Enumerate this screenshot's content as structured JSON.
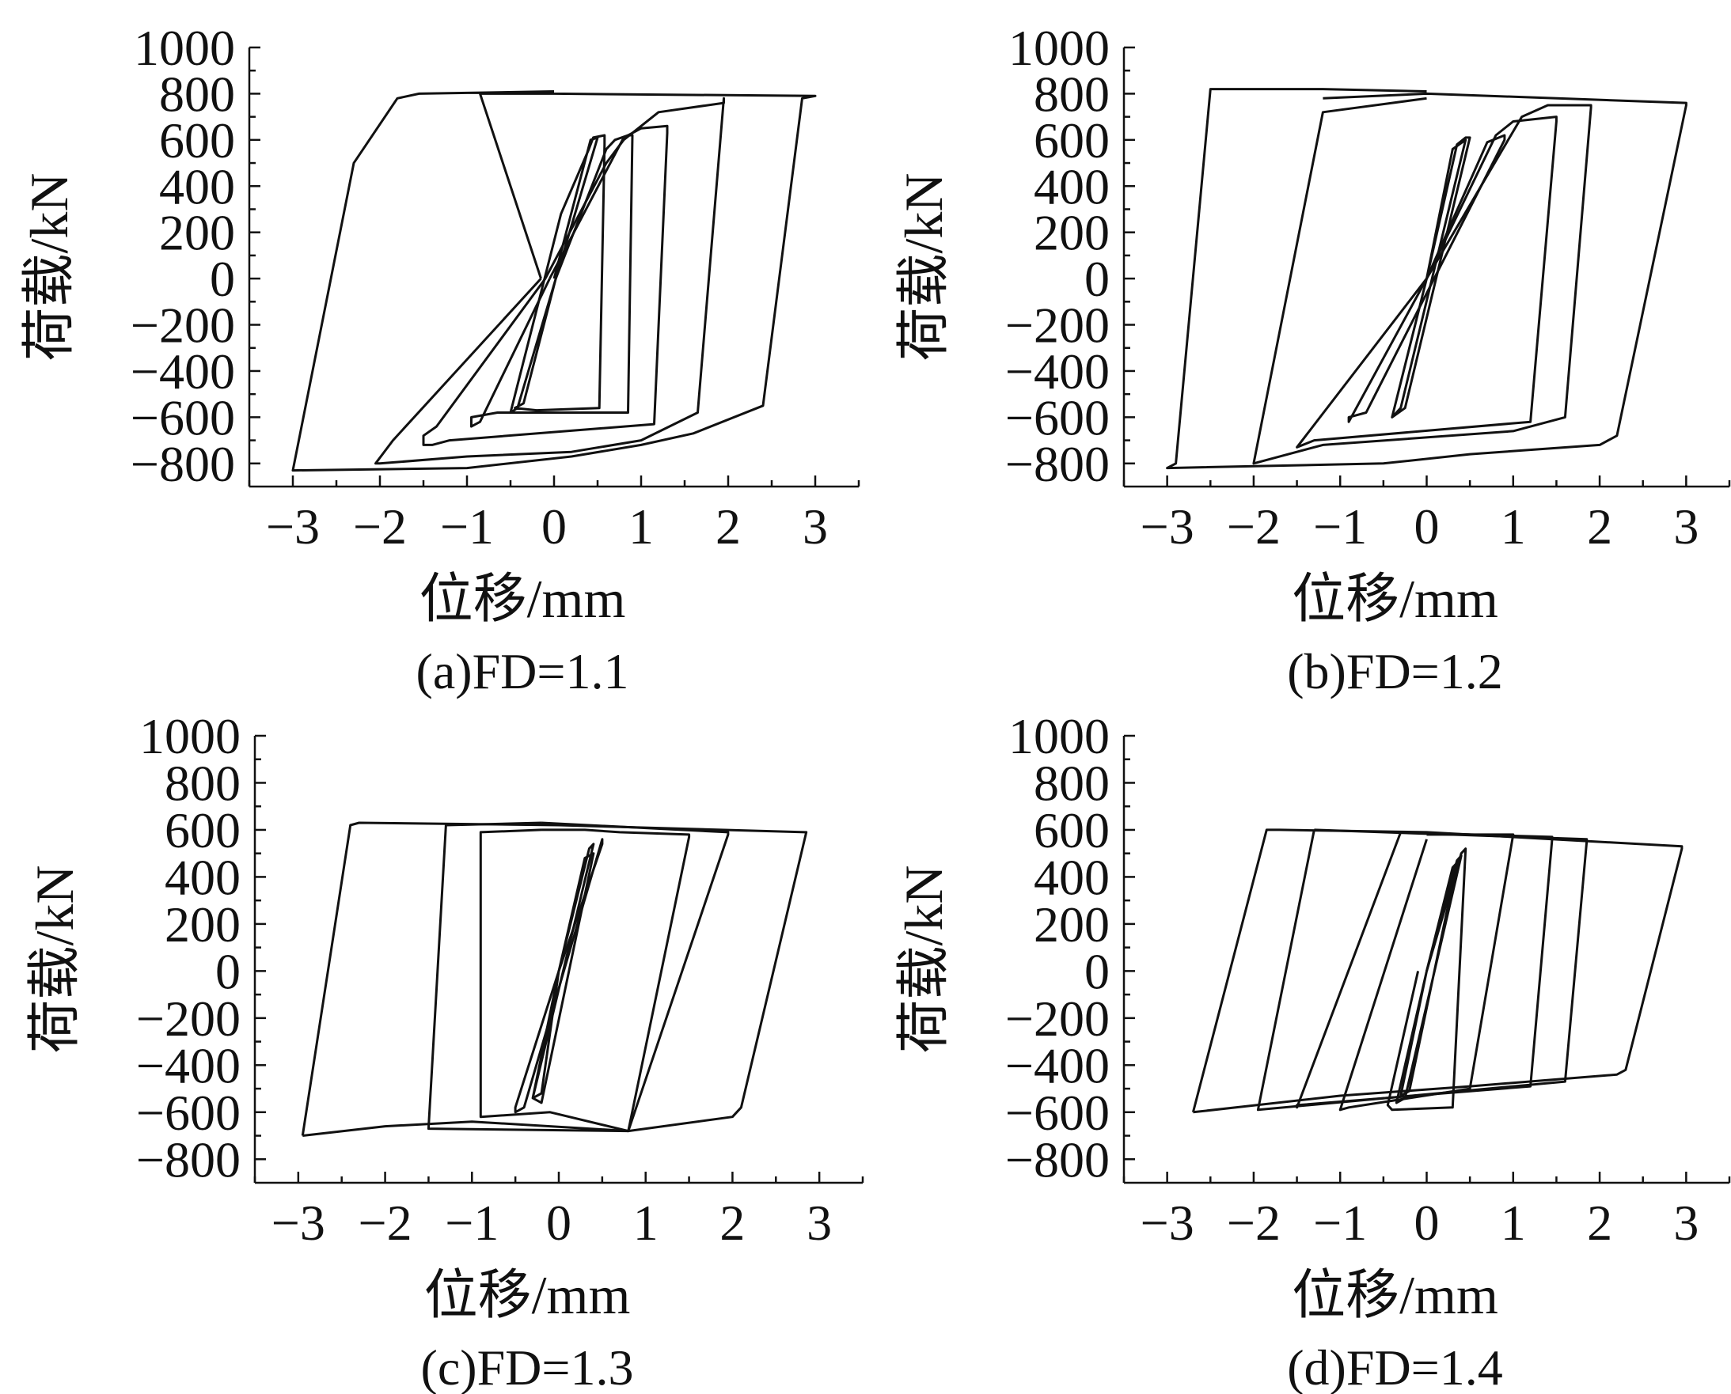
{
  "chart_data": [
    {
      "type": "line",
      "caption": "(a)FD=1.1",
      "xlabel": "位移/mm",
      "ylabel": "荷载/kN",
      "xlim": [
        -3.5,
        3.5
      ],
      "ylim": [
        -900,
        1000
      ],
      "xticks": [
        -3,
        -2,
        -1,
        0,
        1,
        2,
        3
      ],
      "yticks": [
        -800,
        -600,
        -400,
        -200,
        0,
        200,
        400,
        600,
        800,
        1000
      ],
      "series": [
        {
          "x": [
            0,
            0.42,
            0.5,
            -0.42,
            -0.5,
            0.08,
            0.4,
            0.45,
            0.58,
            0.58,
            0.52,
            -0.2,
            -0.45,
            -0.45,
            -0.35,
            0.02
          ],
          "y": [
            0,
            600,
            610,
            -560,
            -580,
            280,
            560,
            610,
            620,
            580,
            -560,
            -570,
            -560,
            -560,
            -540,
            0
          ]
        },
        {
          "x": [
            0.02,
            0.6,
            0.7,
            0.85,
            0.9,
            0.85,
            -0.65,
            -0.95,
            -0.95,
            -0.85,
            -0.05
          ],
          "y": [
            0,
            560,
            600,
            620,
            620,
            -580,
            -580,
            -600,
            -640,
            -620,
            0
          ]
        },
        {
          "x": [
            -0.05,
            0.8,
            0.95,
            1.0,
            1.3,
            1.3,
            1.15,
            -1.2,
            -1.4,
            -1.5,
            -1.5,
            -1.35,
            -0.1
          ],
          "y": [
            0,
            610,
            640,
            650,
            660,
            630,
            -630,
            -700,
            -720,
            -720,
            -680,
            -640,
            0
          ]
        },
        {
          "x": [
            -0.1,
            0.6,
            0.8,
            1.2,
            1.95,
            1.95,
            1.65,
            1.0,
            0.2,
            -1.0,
            -2.0,
            -2.05,
            -1.85,
            -0.15
          ],
          "y": [
            0,
            500,
            600,
            720,
            760,
            780,
            -580,
            -700,
            -750,
            -770,
            -800,
            -800,
            -700,
            0
          ]
        },
        {
          "x": [
            -0.15,
            -0.85,
            -0.6,
            0.0,
            3.0,
            2.85,
            2.4,
            1.6,
            1.0,
            0.2,
            -1.0,
            -3.0,
            -2.3,
            -1.8,
            -1.55,
            0.0
          ],
          "y": [
            0,
            800,
            800,
            800,
            790,
            780,
            -550,
            -670,
            -720,
            -770,
            -820,
            -830,
            500,
            780,
            800,
            810
          ]
        }
      ]
    },
    {
      "type": "line",
      "caption": "(b)FD=1.2",
      "xlabel": "位移/mm",
      "ylabel": "荷载/kN",
      "xlim": [
        -3.5,
        3.5
      ],
      "ylim": [
        -900,
        1000
      ],
      "xticks": [
        -3,
        -2,
        -1,
        0,
        1,
        2,
        3
      ],
      "yticks": [
        -800,
        -600,
        -400,
        -200,
        0,
        200,
        400,
        600,
        800,
        1000
      ],
      "series": [
        {
          "x": [
            0,
            0.3,
            0.45,
            -0.3,
            -0.4,
            0.0,
            0.35,
            0.45,
            0.5,
            -0.25,
            -0.4,
            0.0
          ],
          "y": [
            0,
            560,
            600,
            -560,
            -600,
            0,
            580,
            610,
            610,
            -560,
            -600,
            0
          ]
        },
        {
          "x": [
            0.0,
            0.7,
            0.9,
            0.9,
            -0.7,
            -0.9,
            -0.9,
            0.0
          ],
          "y": [
            0,
            590,
            620,
            600,
            -580,
            -600,
            -620,
            0
          ]
        },
        {
          "x": [
            0.0,
            0.8,
            1.0,
            1.5,
            1.5,
            1.2,
            -1.3,
            -1.5,
            -1.5,
            0.0
          ],
          "y": [
            0,
            620,
            680,
            700,
            680,
            -620,
            -700,
            -730,
            -730,
            0
          ]
        },
        {
          "x": [
            0.0,
            1.1,
            1.4,
            1.9,
            1.9,
            1.6,
            1.0,
            -1.2,
            -2.0,
            -2.0,
            -1.2,
            0.0
          ],
          "y": [
            0,
            700,
            750,
            750,
            740,
            -600,
            -660,
            -720,
            -800,
            -800,
            720,
            780
          ]
        },
        {
          "x": [
            -1.2,
            0.0,
            3.0,
            3.0,
            2.2,
            2.0,
            0.5,
            -0.5,
            -3.0,
            -2.9,
            -2.5,
            -1.2,
            0.0
          ],
          "y": [
            780,
            800,
            760,
            750,
            -680,
            -720,
            -760,
            -800,
            -820,
            -800,
            820,
            820,
            810
          ]
        }
      ]
    },
    {
      "type": "line",
      "caption": "(c)FD=1.3",
      "xlabel": "位移/mm",
      "ylabel": "荷载/kN",
      "xlim": [
        -3.5,
        3.5
      ],
      "ylim": [
        -900,
        1000
      ],
      "xticks": [
        -3,
        -2,
        -1,
        0,
        1,
        2,
        3
      ],
      "yticks": [
        -800,
        -600,
        -400,
        -200,
        0,
        200,
        400,
        600,
        800,
        1000
      ],
      "series": [
        {
          "x": [
            0,
            0.3,
            0.4,
            -0.2,
            -0.3,
            0.0,
            0.35,
            0.4,
            -0.3,
            -0.2,
            0.0
          ],
          "y": [
            0,
            480,
            500,
            -560,
            -540,
            0,
            520,
            540,
            -540,
            -520,
            0
          ]
        },
        {
          "x": [
            0.0,
            0.5,
            0.5,
            -0.4,
            -0.5,
            -0.5,
            0.0
          ],
          "y": [
            0,
            540,
            560,
            -580,
            -600,
            -580,
            0
          ]
        },
        {
          "x": [
            -0.2,
            0.3,
            0.7,
            1.5,
            1.5,
            0.8,
            -0.1,
            -0.9,
            -0.9,
            -0.2
          ],
          "y": [
            600,
            600,
            590,
            580,
            570,
            -680,
            -600,
            -620,
            590,
            600
          ]
        },
        {
          "x": [
            -0.2,
            1.95,
            1.95,
            0.8,
            -1.5,
            -1.5,
            -1.3,
            -0.2
          ],
          "y": [
            630,
            590,
            580,
            -680,
            -670,
            -670,
            620,
            630
          ]
        },
        {
          "x": [
            -2.95,
            -2.4,
            -2.3,
            0.0,
            2.85,
            2.85,
            2.1,
            2.0,
            0.8,
            -1.0,
            -2.0,
            -2.95
          ],
          "y": [
            -700,
            620,
            630,
            620,
            590,
            590,
            -580,
            -620,
            -680,
            -640,
            -660,
            -700
          ]
        }
      ]
    },
    {
      "type": "line",
      "caption": "(d)FD=1.4",
      "xlabel": "位移/mm",
      "ylabel": "荷载/kN",
      "xlim": [
        -3.5,
        3.5
      ],
      "ylim": [
        -900,
        1000
      ],
      "xticks": [
        -3,
        -2,
        -1,
        0,
        1,
        2,
        3
      ],
      "yticks": [
        -800,
        -600,
        -400,
        -200,
        0,
        200,
        400,
        600,
        800,
        1000
      ],
      "series": [
        {
          "x": [
            0,
            0.3,
            0.35,
            -0.2,
            -0.3,
            0.0,
            0.35,
            0.4,
            -0.25,
            -0.35,
            0.0
          ],
          "y": [
            0,
            440,
            460,
            -510,
            -530,
            0,
            470,
            490,
            -540,
            -560,
            0
          ]
        },
        {
          "x": [
            0.0,
            0.4,
            0.45,
            0.3,
            -0.4,
            -0.45,
            -0.1
          ],
          "y": [
            0,
            500,
            520,
            -580,
            -590,
            -570,
            0
          ]
        },
        {
          "x": [
            0.0,
            0.8,
            1.0,
            0.5,
            -0.9,
            -1.0,
            -1.0,
            0.0
          ],
          "y": [
            580,
            580,
            580,
            -500,
            -580,
            -590,
            -590,
            560
          ]
        },
        {
          "x": [
            -0.4,
            1.45,
            1.45,
            1.2,
            -1.5,
            -1.5,
            -0.3
          ],
          "y": [
            590,
            570,
            560,
            -490,
            -570,
            -580,
            590
          ]
        },
        {
          "x": [
            -1.3,
            1.85,
            1.85,
            1.6,
            -1.95,
            -1.95,
            -1.3
          ],
          "y": [
            600,
            560,
            550,
            -470,
            -590,
            -590,
            600
          ]
        },
        {
          "x": [
            -2.7,
            -1.85,
            -1.7,
            0.0,
            2.95,
            2.95,
            2.3,
            2.2,
            0.5,
            -1.0,
            -2.7
          ],
          "y": [
            -600,
            600,
            600,
            590,
            530,
            520,
            -420,
            -440,
            -490,
            -530,
            -600
          ]
        }
      ]
    }
  ]
}
